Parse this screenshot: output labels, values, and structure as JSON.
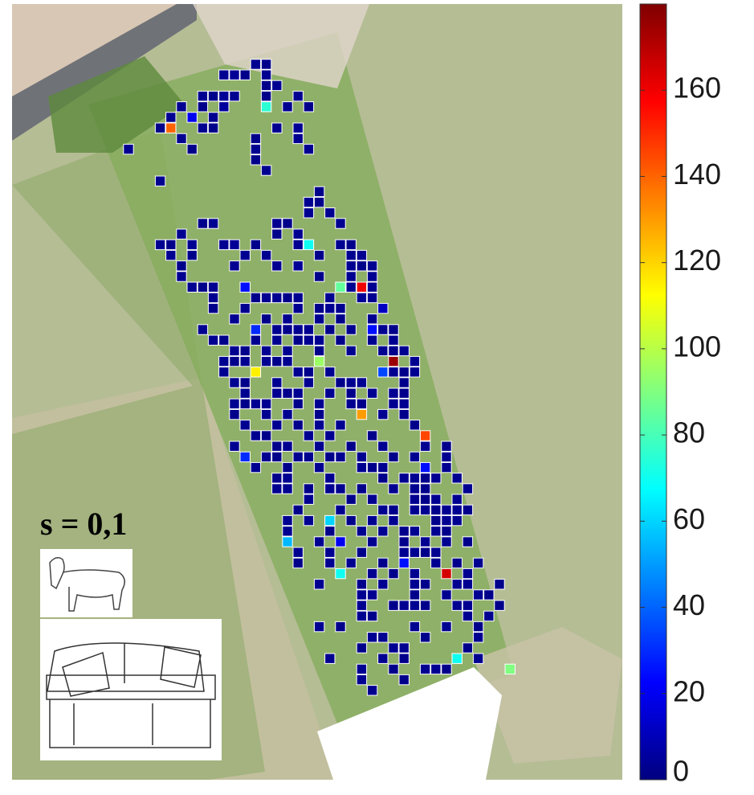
{
  "chart_data": {
    "type": "heatmap",
    "label": "s = 0,1",
    "colormap": "jet",
    "clim": [
      0,
      180
    ],
    "cticks": [
      0,
      20,
      40,
      60,
      80,
      100,
      120,
      140,
      160
    ],
    "cells": [
      [
        12,
        0,
        3
      ],
      [
        13,
        0,
        2
      ],
      [
        9,
        1,
        3
      ],
      [
        10,
        1,
        4
      ],
      [
        11,
        1,
        2
      ],
      [
        13,
        1,
        3
      ],
      [
        13,
        2,
        2
      ],
      [
        14,
        2,
        3
      ],
      [
        7,
        3,
        3
      ],
      [
        8,
        3,
        2
      ],
      [
        9,
        3,
        4
      ],
      [
        10,
        3,
        3
      ],
      [
        13,
        3,
        2
      ],
      [
        16,
        3,
        3
      ],
      [
        5,
        4,
        3
      ],
      [
        7,
        4,
        2
      ],
      [
        9,
        4,
        5
      ],
      [
        13,
        4,
        75
      ],
      [
        15,
        4,
        3
      ],
      [
        17,
        4,
        2
      ],
      [
        4,
        5,
        3
      ],
      [
        6,
        5,
        20
      ],
      [
        8,
        5,
        3
      ],
      [
        3,
        6,
        2
      ],
      [
        4,
        6,
        140
      ],
      [
        7,
        6,
        3
      ],
      [
        8,
        6,
        2
      ],
      [
        14,
        6,
        3
      ],
      [
        16,
        6,
        4
      ],
      [
        5,
        7,
        3
      ],
      [
        12,
        7,
        2
      ],
      [
        16,
        7,
        3
      ],
      [
        0,
        8,
        3
      ],
      [
        6,
        8,
        2
      ],
      [
        12,
        8,
        3
      ],
      [
        17,
        8,
        3
      ],
      [
        12,
        9,
        2
      ],
      [
        13,
        10,
        3
      ],
      [
        3,
        11,
        3
      ],
      [
        18,
        12,
        2
      ],
      [
        17,
        13,
        3
      ],
      [
        18,
        13,
        2
      ],
      [
        17,
        14,
        3
      ],
      [
        19,
        14,
        3
      ],
      [
        7,
        15,
        2
      ],
      [
        8,
        15,
        3
      ],
      [
        14,
        15,
        3
      ],
      [
        15,
        15,
        2
      ],
      [
        20,
        15,
        3
      ],
      [
        5,
        16,
        3
      ],
      [
        14,
        16,
        2
      ],
      [
        16,
        16,
        3
      ],
      [
        3,
        17,
        3
      ],
      [
        4,
        17,
        2
      ],
      [
        6,
        17,
        3
      ],
      [
        9,
        17,
        3
      ],
      [
        10,
        17,
        4
      ],
      [
        12,
        17,
        2
      ],
      [
        16,
        17,
        3
      ],
      [
        17,
        17,
        70
      ],
      [
        20,
        17,
        3
      ],
      [
        21,
        17,
        2
      ],
      [
        4,
        18,
        3
      ],
      [
        6,
        18,
        2
      ],
      [
        11,
        18,
        3
      ],
      [
        13,
        18,
        3
      ],
      [
        18,
        18,
        2
      ],
      [
        21,
        18,
        3
      ],
      [
        22,
        18,
        3
      ],
      [
        5,
        19,
        2
      ],
      [
        10,
        19,
        3
      ],
      [
        14,
        19,
        3
      ],
      [
        16,
        19,
        4
      ],
      [
        21,
        19,
        3
      ],
      [
        22,
        19,
        2
      ],
      [
        23,
        19,
        3
      ],
      [
        5,
        20,
        3
      ],
      [
        18,
        20,
        2
      ],
      [
        21,
        20,
        3
      ],
      [
        23,
        20,
        3
      ],
      [
        6,
        21,
        3
      ],
      [
        7,
        21,
        2
      ],
      [
        8,
        21,
        3
      ],
      [
        11,
        21,
        25
      ],
      [
        20,
        21,
        85
      ],
      [
        21,
        21,
        3
      ],
      [
        22,
        21,
        160
      ],
      [
        23,
        21,
        3
      ],
      [
        8,
        22,
        3
      ],
      [
        12,
        22,
        2
      ],
      [
        13,
        22,
        3
      ],
      [
        14,
        22,
        3
      ],
      [
        15,
        22,
        2
      ],
      [
        16,
        22,
        3
      ],
      [
        19,
        22,
        3
      ],
      [
        22,
        22,
        4
      ],
      [
        23,
        22,
        3
      ],
      [
        8,
        23,
        2
      ],
      [
        11,
        23,
        3
      ],
      [
        16,
        23,
        3
      ],
      [
        18,
        23,
        2
      ],
      [
        19,
        23,
        3
      ],
      [
        20,
        23,
        3
      ],
      [
        24,
        23,
        12
      ],
      [
        10,
        24,
        3
      ],
      [
        13,
        24,
        2
      ],
      [
        15,
        24,
        3
      ],
      [
        18,
        24,
        3
      ],
      [
        20,
        24,
        2
      ],
      [
        23,
        24,
        3
      ],
      [
        7,
        25,
        3
      ],
      [
        12,
        25,
        30
      ],
      [
        14,
        25,
        3
      ],
      [
        15,
        25,
        2
      ],
      [
        16,
        25,
        3
      ],
      [
        17,
        25,
        3
      ],
      [
        19,
        25,
        2
      ],
      [
        21,
        25,
        3
      ],
      [
        23,
        25,
        25
      ],
      [
        24,
        25,
        3
      ],
      [
        25,
        25,
        2
      ],
      [
        8,
        26,
        3
      ],
      [
        9,
        26,
        2
      ],
      [
        12,
        26,
        3
      ],
      [
        14,
        26,
        3
      ],
      [
        16,
        26,
        2
      ],
      [
        17,
        26,
        3
      ],
      [
        18,
        26,
        3
      ],
      [
        20,
        26,
        2
      ],
      [
        23,
        26,
        3
      ],
      [
        25,
        26,
        3
      ],
      [
        10,
        27,
        3
      ],
      [
        11,
        27,
        2
      ],
      [
        13,
        27,
        3
      ],
      [
        15,
        27,
        3
      ],
      [
        18,
        27,
        2
      ],
      [
        21,
        27,
        3
      ],
      [
        24,
        27,
        3
      ],
      [
        25,
        27,
        2
      ],
      [
        26,
        27,
        3
      ],
      [
        9,
        28,
        3
      ],
      [
        10,
        28,
        2
      ],
      [
        11,
        28,
        3
      ],
      [
        13,
        28,
        3
      ],
      [
        14,
        28,
        2
      ],
      [
        15,
        28,
        3
      ],
      [
        18,
        28,
        95
      ],
      [
        25,
        28,
        175
      ],
      [
        27,
        28,
        3
      ],
      [
        9,
        29,
        3
      ],
      [
        12,
        29,
        115
      ],
      [
        16,
        29,
        3
      ],
      [
        17,
        29,
        2
      ],
      [
        19,
        29,
        3
      ],
      [
        24,
        29,
        35
      ],
      [
        25,
        29,
        3
      ],
      [
        26,
        29,
        2
      ],
      [
        27,
        29,
        3
      ],
      [
        10,
        30,
        3
      ],
      [
        11,
        30,
        2
      ],
      [
        14,
        30,
        3
      ],
      [
        17,
        30,
        3
      ],
      [
        20,
        30,
        2
      ],
      [
        21,
        30,
        3
      ],
      [
        22,
        30,
        3
      ],
      [
        26,
        30,
        2
      ],
      [
        11,
        31,
        3
      ],
      [
        14,
        31,
        3
      ],
      [
        15,
        31,
        2
      ],
      [
        16,
        31,
        3
      ],
      [
        19,
        31,
        3
      ],
      [
        21,
        31,
        2
      ],
      [
        23,
        31,
        3
      ],
      [
        25,
        31,
        3
      ],
      [
        26,
        31,
        2
      ],
      [
        10,
        32,
        3
      ],
      [
        11,
        32,
        2
      ],
      [
        12,
        32,
        3
      ],
      [
        13,
        32,
        3
      ],
      [
        16,
        32,
        2
      ],
      [
        18,
        32,
        3
      ],
      [
        21,
        32,
        3
      ],
      [
        22,
        32,
        2
      ],
      [
        25,
        32,
        3
      ],
      [
        26,
        32,
        3
      ],
      [
        10,
        33,
        2
      ],
      [
        13,
        33,
        3
      ],
      [
        15,
        33,
        3
      ],
      [
        18,
        33,
        2
      ],
      [
        22,
        33,
        130
      ],
      [
        24,
        33,
        3
      ],
      [
        26,
        33,
        2
      ],
      [
        11,
        34,
        3
      ],
      [
        14,
        34,
        3
      ],
      [
        16,
        34,
        2
      ],
      [
        18,
        34,
        3
      ],
      [
        20,
        34,
        3
      ],
      [
        27,
        34,
        2
      ],
      [
        12,
        35,
        3
      ],
      [
        13,
        35,
        2
      ],
      [
        17,
        35,
        3
      ],
      [
        19,
        35,
        3
      ],
      [
        23,
        35,
        2
      ],
      [
        28,
        35,
        145
      ],
      [
        10,
        36,
        3
      ],
      [
        14,
        36,
        2
      ],
      [
        15,
        36,
        3
      ],
      [
        18,
        36,
        3
      ],
      [
        21,
        36,
        2
      ],
      [
        24,
        36,
        3
      ],
      [
        28,
        36,
        3
      ],
      [
        30,
        36,
        2
      ],
      [
        11,
        37,
        30
      ],
      [
        13,
        37,
        3
      ],
      [
        14,
        37,
        2
      ],
      [
        16,
        37,
        3
      ],
      [
        17,
        37,
        3
      ],
      [
        19,
        37,
        2
      ],
      [
        20,
        37,
        3
      ],
      [
        22,
        37,
        3
      ],
      [
        25,
        37,
        2
      ],
      [
        27,
        37,
        3
      ],
      [
        30,
        37,
        3
      ],
      [
        12,
        38,
        3
      ],
      [
        15,
        38,
        2
      ],
      [
        18,
        38,
        3
      ],
      [
        22,
        38,
        3
      ],
      [
        23,
        38,
        2
      ],
      [
        24,
        38,
        3
      ],
      [
        28,
        38,
        25
      ],
      [
        30,
        38,
        3
      ],
      [
        14,
        39,
        2
      ],
      [
        15,
        39,
        3
      ],
      [
        19,
        39,
        3
      ],
      [
        24,
        39,
        2
      ],
      [
        26,
        39,
        3
      ],
      [
        27,
        39,
        3
      ],
      [
        28,
        39,
        2
      ],
      [
        29,
        39,
        3
      ],
      [
        31,
        39,
        3
      ],
      [
        14,
        40,
        3
      ],
      [
        15,
        40,
        3
      ],
      [
        17,
        40,
        2
      ],
      [
        19,
        40,
        3
      ],
      [
        20,
        40,
        3
      ],
      [
        22,
        40,
        2
      ],
      [
        25,
        40,
        3
      ],
      [
        27,
        40,
        3
      ],
      [
        28,
        40,
        2
      ],
      [
        32,
        40,
        3
      ],
      [
        17,
        41,
        3
      ],
      [
        21,
        41,
        2
      ],
      [
        23,
        41,
        3
      ],
      [
        27,
        41,
        3
      ],
      [
        28,
        41,
        2
      ],
      [
        29,
        41,
        3
      ],
      [
        31,
        41,
        3
      ],
      [
        16,
        42,
        2
      ],
      [
        20,
        42,
        3
      ],
      [
        24,
        42,
        3
      ],
      [
        25,
        42,
        2
      ],
      [
        27,
        42,
        3
      ],
      [
        28,
        42,
        3
      ],
      [
        29,
        42,
        2
      ],
      [
        30,
        42,
        3
      ],
      [
        31,
        42,
        3
      ],
      [
        32,
        42,
        2
      ],
      [
        15,
        43,
        3
      ],
      [
        17,
        43,
        3
      ],
      [
        19,
        43,
        60
      ],
      [
        21,
        43,
        2
      ],
      [
        23,
        43,
        3
      ],
      [
        25,
        43,
        3
      ],
      [
        29,
        43,
        2
      ],
      [
        30,
        43,
        3
      ],
      [
        31,
        43,
        3
      ],
      [
        15,
        44,
        3
      ],
      [
        19,
        44,
        2
      ],
      [
        22,
        44,
        3
      ],
      [
        24,
        44,
        3
      ],
      [
        26,
        44,
        2
      ],
      [
        27,
        44,
        3
      ],
      [
        29,
        44,
        3
      ],
      [
        30,
        44,
        2
      ],
      [
        15,
        45,
        55
      ],
      [
        18,
        45,
        3
      ],
      [
        20,
        45,
        20
      ],
      [
        23,
        45,
        3
      ],
      [
        26,
        45,
        2
      ],
      [
        28,
        45,
        3
      ],
      [
        30,
        45,
        3
      ],
      [
        32,
        45,
        2
      ],
      [
        16,
        46,
        3
      ],
      [
        19,
        46,
        3
      ],
      [
        22,
        46,
        2
      ],
      [
        26,
        46,
        3
      ],
      [
        27,
        46,
        3
      ],
      [
        28,
        46,
        2
      ],
      [
        29,
        46,
        3
      ],
      [
        16,
        47,
        2
      ],
      [
        19,
        47,
        3
      ],
      [
        21,
        47,
        3
      ],
      [
        24,
        47,
        2
      ],
      [
        26,
        47,
        25
      ],
      [
        29,
        47,
        3
      ],
      [
        31,
        47,
        2
      ],
      [
        33,
        47,
        3
      ],
      [
        20,
        48,
        70
      ],
      [
        23,
        48,
        3
      ],
      [
        25,
        48,
        2
      ],
      [
        27,
        48,
        3
      ],
      [
        30,
        48,
        165
      ],
      [
        32,
        48,
        3
      ],
      [
        18,
        49,
        3
      ],
      [
        22,
        49,
        2
      ],
      [
        24,
        49,
        3
      ],
      [
        27,
        49,
        3
      ],
      [
        28,
        49,
        2
      ],
      [
        31,
        49,
        3
      ],
      [
        32,
        49,
        3
      ],
      [
        35,
        49,
        2
      ],
      [
        22,
        50,
        3
      ],
      [
        23,
        50,
        3
      ],
      [
        27,
        50,
        2
      ],
      [
        30,
        50,
        3
      ],
      [
        33,
        50,
        3
      ],
      [
        34,
        50,
        2
      ],
      [
        22,
        51,
        3
      ],
      [
        25,
        51,
        2
      ],
      [
        26,
        51,
        3
      ],
      [
        27,
        51,
        3
      ],
      [
        28,
        51,
        2
      ],
      [
        31,
        51,
        3
      ],
      [
        32,
        51,
        3
      ],
      [
        35,
        51,
        2
      ],
      [
        22,
        52,
        3
      ],
      [
        23,
        52,
        2
      ],
      [
        32,
        52,
        3
      ],
      [
        34,
        52,
        3
      ],
      [
        18,
        53,
        3
      ],
      [
        20,
        53,
        2
      ],
      [
        27,
        53,
        3
      ],
      [
        30,
        53,
        3
      ],
      [
        33,
        53,
        2
      ],
      [
        23,
        54,
        3
      ],
      [
        24,
        54,
        3
      ],
      [
        28,
        54,
        2
      ],
      [
        33,
        54,
        3
      ],
      [
        22,
        55,
        2
      ],
      [
        25,
        55,
        3
      ],
      [
        26,
        55,
        3
      ],
      [
        32,
        55,
        2
      ],
      [
        19,
        56,
        3
      ],
      [
        24,
        56,
        3
      ],
      [
        26,
        56,
        2
      ],
      [
        31,
        56,
        70
      ],
      [
        33,
        56,
        3
      ],
      [
        22,
        57,
        3
      ],
      [
        25,
        57,
        2
      ],
      [
        28,
        57,
        3
      ],
      [
        29,
        57,
        3
      ],
      [
        30,
        57,
        2
      ],
      [
        36,
        57,
        90
      ],
      [
        22,
        58,
        3
      ],
      [
        26,
        58,
        2
      ],
      [
        23,
        59,
        3
      ]
    ]
  }
}
